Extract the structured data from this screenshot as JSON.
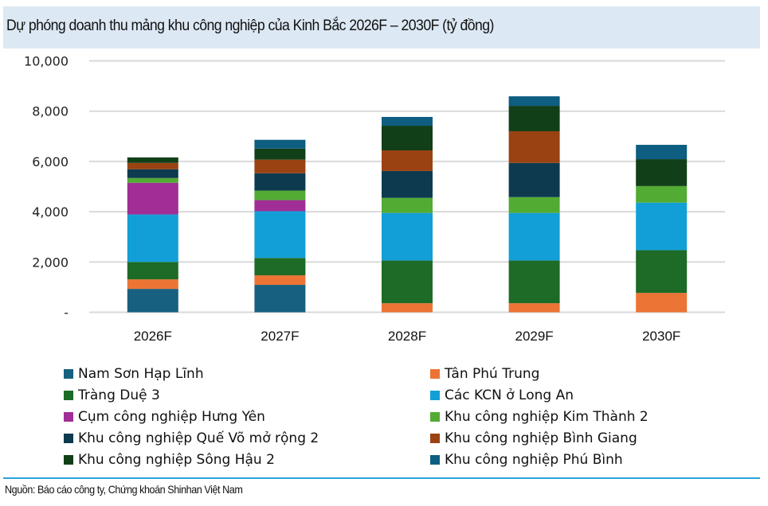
{
  "title": "Dự phóng doanh thu mảng khu công nghiệp của Kinh Bắc 2026F – 2030F (tỷ đồng)",
  "source": "Nguồn: Báo cáo công ty, Chứng khoán Shinhan Việt Nam",
  "colors": {
    "title_bg": "#dce8f4",
    "gridline": "#d9d9d9",
    "footer_line": "#2aa3d8"
  },
  "chart_data": {
    "type": "bar",
    "stacked": true,
    "title": "Dự phóng doanh thu mảng khu công nghiệp của Kinh Bắc 2026F – 2030F (tỷ đồng)",
    "xlabel": "",
    "ylabel": "",
    "ylim": [
      0,
      10000
    ],
    "yticks": [
      0,
      2000,
      4000,
      6000,
      8000,
      10000
    ],
    "ytick_labels": [
      "-",
      "2,000",
      "4,000",
      "6,000",
      "8,000",
      "10,000"
    ],
    "grid": true,
    "legend_position": "bottom",
    "categories": [
      "2026F",
      "2027F",
      "2028F",
      "2029F",
      "2030F"
    ],
    "series": [
      {
        "name": "Nam Sơn Hạp Lĩnh",
        "color": "#17607f",
        "values": [
          930,
          1090,
          0,
          0,
          0
        ]
      },
      {
        "name": "Tân Phú Trung",
        "color": "#ec7434",
        "values": [
          380,
          380,
          360,
          360,
          770
        ]
      },
      {
        "name": "Tràng Duệ 3",
        "color": "#1d6b26",
        "values": [
          690,
          690,
          1700,
          1700,
          1700
        ]
      },
      {
        "name": "Các KCN ở Long An",
        "color": "#129fd7",
        "values": [
          1890,
          1860,
          1890,
          1890,
          1890
        ]
      },
      {
        "name": "Cụm công nghiệp Hưng Yên",
        "color": "#a02e96",
        "values": [
          1260,
          440,
          0,
          0,
          0
        ]
      },
      {
        "name": "Khu công nghiệp Kim Thành 2",
        "color": "#52ab33",
        "values": [
          190,
          380,
          600,
          630,
          660
        ]
      },
      {
        "name": "Khu công nghiệp Quế Võ mở rộng 2",
        "color": "#0e3a50",
        "values": [
          350,
          690,
          1070,
          1360,
          0
        ]
      },
      {
        "name": "Khu công nghiệp Bình Giang",
        "color": "#9a4212",
        "values": [
          250,
          540,
          820,
          1260,
          0
        ]
      },
      {
        "name": "Khu công nghiệp Sông Hậu 2",
        "color": "#113f18",
        "values": [
          220,
          440,
          980,
          1010,
          1070
        ]
      },
      {
        "name": "Khu công nghiệp Phú Bình",
        "color": "#0d5e80",
        "values": [
          0,
          350,
          350,
          380,
          570
        ]
      }
    ]
  },
  "legend_order": [
    0,
    1,
    2,
    3,
    4,
    5,
    6,
    7,
    8,
    9
  ]
}
